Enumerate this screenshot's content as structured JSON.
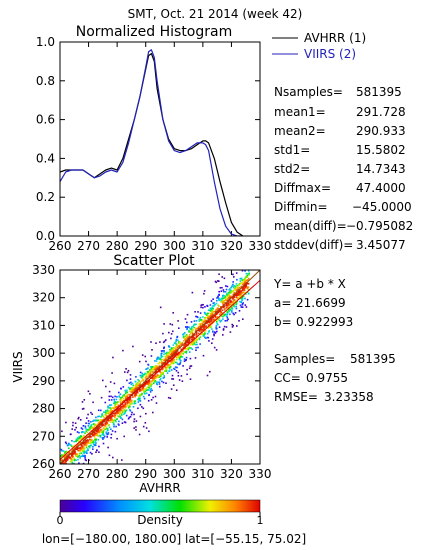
{
  "header": {
    "title": "SMT,  Oct. 21 2014 (week 42)"
  },
  "histogram": {
    "title": "Normalized Histogram",
    "legend": [
      {
        "label": "AVHRR (1)",
        "color": "#000000"
      },
      {
        "label": "VIIRS (2)",
        "color": "#2222bb"
      }
    ],
    "stats": [
      {
        "label": "Nsamples=",
        "value": "581395"
      },
      {
        "label": "mean1=",
        "value": "291.728"
      },
      {
        "label": "mean2=",
        "value": "290.933"
      },
      {
        "label": "std1=",
        "value": "15.5802"
      },
      {
        "label": "std2=",
        "value": "14.7343"
      },
      {
        "label": "Diffmax=",
        "value": "47.4000"
      },
      {
        "label": "Diffmin=",
        "value": "−45.0000"
      },
      {
        "label": "mean(diff)=",
        "value": "−0.795082"
      },
      {
        "label": "stddev(diff)=",
        "value": "3.45077"
      }
    ]
  },
  "scatter": {
    "title": "Scatter Plot",
    "fit": [
      {
        "label": "Y= a +b * X",
        "value": ""
      },
      {
        "label": "a=",
        "value": "21.6699"
      },
      {
        "label": "b=",
        "value": "0.922993"
      }
    ],
    "stats": [
      {
        "label": "Samples=",
        "value": "581395"
      },
      {
        "label": "CC=",
        "value": "0.9755"
      },
      {
        "label": "RMSE=",
        "value": "3.23358"
      }
    ]
  },
  "colorbar": {
    "label": "Density",
    "min": "0",
    "max": "1"
  },
  "footer": {
    "text": "lon=[−180.00, 180.00] lat=[−55.15, 75.02]"
  },
  "chart_data": [
    {
      "type": "line",
      "title": "Normalized Histogram",
      "xlabel": "",
      "ylabel": "",
      "xlim": [
        260,
        330
      ],
      "ylim": [
        0,
        1.0
      ],
      "xticks": [
        260,
        270,
        280,
        290,
        300,
        310,
        320,
        330
      ],
      "yticks": [
        0.0,
        0.2,
        0.4,
        0.6,
        0.8,
        1.0
      ],
      "series": [
        {
          "name": "AVHRR (1)",
          "color": "#000000",
          "x": [
            260,
            262,
            264,
            266,
            268,
            270,
            272,
            274,
            276,
            278,
            280,
            282,
            284,
            286,
            288,
            290,
            291,
            292,
            293,
            294,
            296,
            298,
            300,
            302,
            304,
            306,
            308,
            310,
            311,
            312,
            314,
            316,
            318,
            320,
            322,
            324
          ],
          "y": [
            0.33,
            0.34,
            0.34,
            0.34,
            0.34,
            0.32,
            0.3,
            0.32,
            0.34,
            0.35,
            0.34,
            0.4,
            0.5,
            0.6,
            0.72,
            0.86,
            0.93,
            0.94,
            0.9,
            0.76,
            0.6,
            0.5,
            0.45,
            0.44,
            0.44,
            0.45,
            0.47,
            0.49,
            0.49,
            0.48,
            0.4,
            0.28,
            0.17,
            0.07,
            0.02,
            0.0
          ]
        },
        {
          "name": "VIIRS (2)",
          "color": "#2222bb",
          "x": [
            260,
            262,
            264,
            266,
            268,
            270,
            272,
            274,
            276,
            278,
            280,
            282,
            284,
            286,
            288,
            290,
            291,
            292,
            293,
            294,
            296,
            298,
            300,
            302,
            304,
            306,
            308,
            310,
            311,
            312,
            314,
            316,
            318,
            320,
            322,
            324
          ],
          "y": [
            0.28,
            0.33,
            0.34,
            0.34,
            0.34,
            0.32,
            0.3,
            0.31,
            0.33,
            0.34,
            0.33,
            0.38,
            0.48,
            0.6,
            0.72,
            0.87,
            0.95,
            0.96,
            0.92,
            0.8,
            0.6,
            0.49,
            0.44,
            0.43,
            0.44,
            0.46,
            0.48,
            0.48,
            0.47,
            0.44,
            0.28,
            0.14,
            0.05,
            0.01,
            0.0,
            0.0
          ]
        }
      ]
    },
    {
      "type": "scatter",
      "title": "Scatter Plot",
      "xlabel": "AVHRR",
      "ylabel": "VIIRS",
      "xlim": [
        260,
        330
      ],
      "ylim": [
        260,
        330
      ],
      "xticks": [
        260,
        270,
        280,
        290,
        300,
        310,
        320,
        330
      ],
      "yticks": [
        260,
        270,
        280,
        290,
        300,
        310,
        320,
        330
      ],
      "fit_line": {
        "a": 21.6699,
        "b": 0.922993,
        "color": "#dd0000"
      },
      "density": "colored by normalized point density 0-1 (purple to red), concentrated along the diagonal"
    }
  ]
}
